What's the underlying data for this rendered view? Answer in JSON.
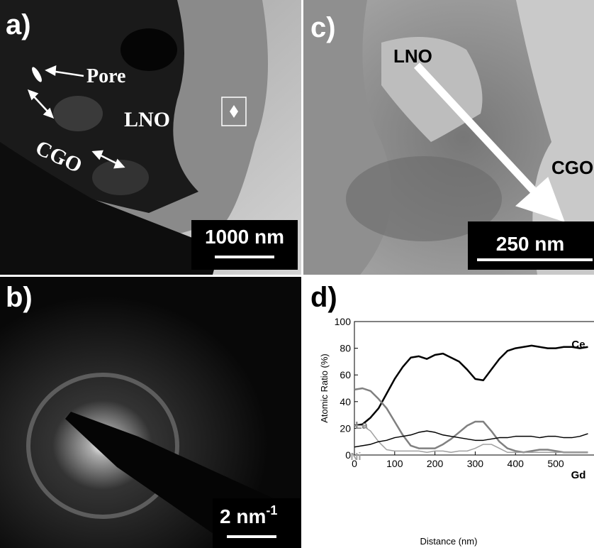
{
  "panels": {
    "a": {
      "label": "a)",
      "annotations": [
        "Pore",
        "LNO",
        "CGO"
      ],
      "scale_bar": "1000 nm"
    },
    "b": {
      "label": "b)",
      "scale_bar": "2 nm",
      "scale_bar_exponent": "-1"
    },
    "c": {
      "label": "c)",
      "annotations": [
        "LNO",
        "CGO"
      ],
      "scale_bar": "250 nm"
    },
    "d": {
      "label": "d)"
    }
  },
  "chart_data": {
    "type": "line",
    "x_label": "Distance (nm)",
    "y_label": "Atomic Ratio (%)",
    "x": [
      0,
      20,
      40,
      60,
      80,
      100,
      120,
      140,
      160,
      180,
      200,
      220,
      240,
      260,
      280,
      300,
      320,
      340,
      360,
      380,
      400,
      420,
      440,
      460,
      480,
      500,
      520,
      540,
      560,
      580
    ],
    "series": [
      {
        "name": "Ce",
        "color": "#000000",
        "values": [
          22,
          23,
          28,
          35,
          46,
          57,
          66,
          73,
          74,
          72,
          75,
          76,
          73,
          70,
          64,
          57,
          56,
          64,
          72,
          78,
          80,
          81,
          82,
          81,
          80,
          80,
          81,
          81,
          80,
          81
        ]
      },
      {
        "name": "La",
        "color": "#808080",
        "values": [
          49,
          50,
          48,
          42,
          35,
          25,
          15,
          7,
          5,
          5,
          5,
          8,
          12,
          17,
          22,
          25,
          25,
          18,
          10,
          5,
          3,
          2,
          3,
          4,
          4,
          3,
          2,
          2,
          2,
          2
        ]
      },
      {
        "name": "Ni",
        "color": "#a0a0a0",
        "values": [
          22,
          22,
          18,
          10,
          4,
          3,
          3,
          3,
          3,
          2,
          3,
          3,
          2,
          3,
          3,
          5,
          8,
          8,
          5,
          2,
          2,
          2,
          2,
          2,
          2,
          2,
          2,
          2,
          2,
          2
        ]
      },
      {
        "name": "Gd",
        "color": "#000000",
        "values": [
          6,
          7,
          8,
          10,
          11,
          13,
          14,
          15,
          17,
          18,
          17,
          15,
          14,
          13,
          12,
          11,
          11,
          12,
          13,
          13,
          14,
          14,
          14,
          13,
          14,
          14,
          13,
          13,
          14,
          16
        ]
      }
    ],
    "xlim": [
      0,
      595
    ],
    "xticks": [
      0,
      100,
      200,
      300,
      400,
      500
    ],
    "ylim": [
      0,
      100
    ],
    "yticks": [
      0,
      20,
      40,
      60,
      80,
      100
    ]
  }
}
